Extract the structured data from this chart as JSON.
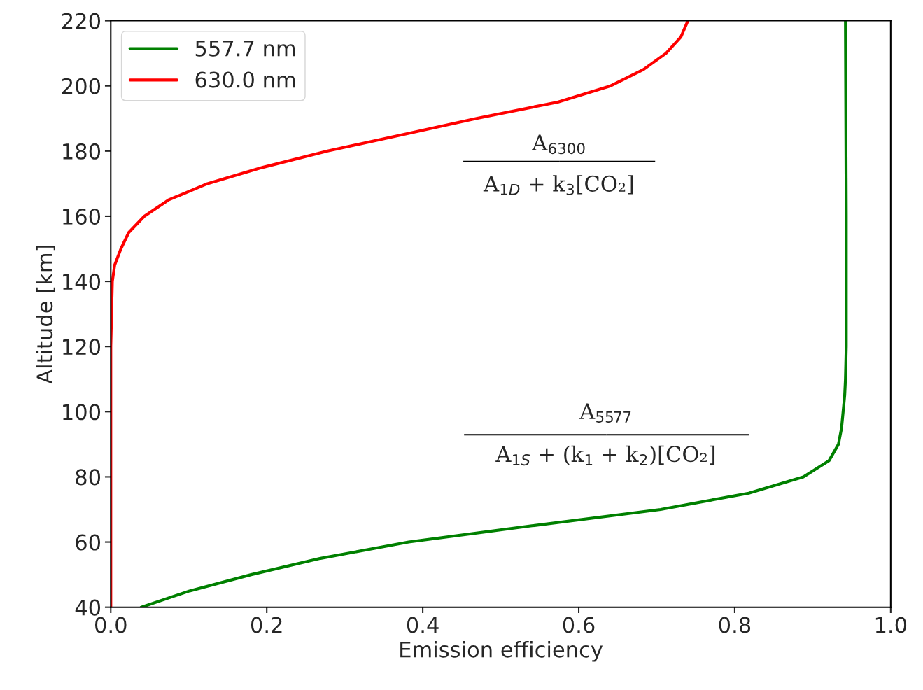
{
  "chart_data": {
    "type": "line",
    "xlabel": "Emission efficiency",
    "ylabel": "Altitude [km]",
    "xlim": [
      0,
      1
    ],
    "ylim": [
      40,
      220
    ],
    "xticks": [
      {
        "value": 0,
        "label": "0.0"
      },
      {
        "value": 0.2,
        "label": "0.2"
      },
      {
        "value": 0.4,
        "label": "0.4"
      },
      {
        "value": 0.6,
        "label": "0.6"
      },
      {
        "value": 0.8,
        "label": "0.8"
      },
      {
        "value": 1,
        "label": "1.0"
      }
    ],
    "yticks": [
      40,
      60,
      80,
      100,
      120,
      140,
      160,
      180,
      200,
      220
    ],
    "grid": false,
    "legend": "top left",
    "line_style": "solid",
    "marker": "none",
    "annotations": [
      "A$_{6300}$",
      "A$_{1D}$ + k$_{3}$[CO₂]",
      "A$_{5577}$",
      "A$_{1S}$ + (k$_{1}$ + k$_{2}$)[CO₂]"
    ],
    "series": [
      {
        "name": "557.7 nm",
        "color": "#008000",
        "x": [
          0.039,
          0.101,
          0.18,
          0.269,
          0.382,
          0.54,
          0.705,
          0.818,
          0.888,
          0.921,
          0.933,
          0.937,
          0.939,
          0.941,
          0.942,
          0.943,
          0.943,
          0.942
        ],
        "values": [
          40,
          45,
          50,
          55,
          60,
          65,
          70,
          75,
          80,
          85,
          90,
          95,
          100,
          105,
          110,
          120,
          160,
          220
        ]
      },
      {
        "name": "630.0 nm",
        "color": "#ff0000",
        "x": [
          0,
          0,
          0.002,
          0.005,
          0.013,
          0.023,
          0.043,
          0.074,
          0.124,
          0.195,
          0.278,
          0.374,
          0.469,
          0.573,
          0.641,
          0.683,
          0.712,
          0.731,
          0.74
        ],
        "values": [
          40,
          120,
          140,
          145,
          150,
          155,
          160,
          165,
          170,
          175,
          180,
          185,
          190,
          195,
          200,
          205,
          210,
          215,
          220
        ]
      }
    ]
  }
}
